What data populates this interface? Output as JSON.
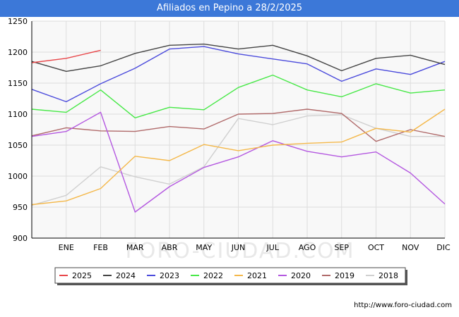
{
  "header": {
    "title": "Afiliados en Pepino a 28/2/2025"
  },
  "watermark": "FORO-CIUDAD.COM",
  "source": "http://www.foro-ciudad.com",
  "chart_data": {
    "type": "line",
    "title": "Afiliados en Pepino a 28/2/2025",
    "xlabel": "",
    "ylabel": "",
    "ylim": [
      900,
      1250
    ],
    "yticks": [
      900,
      950,
      1000,
      1050,
      1100,
      1150,
      1200,
      1250
    ],
    "categories": [
      "",
      "ENE",
      "FEB",
      "MAR",
      "ABR",
      "MAY",
      "JUN",
      "JUL",
      "AGO",
      "SEP",
      "OCT",
      "NOV",
      "DIC"
    ],
    "grid": true,
    "legend_position": "bottom",
    "series": [
      {
        "name": "2025",
        "color": "#e8474a",
        "values": [
          1183,
          1190,
          1203,
          null,
          null,
          null,
          null,
          null,
          null,
          null,
          null,
          null,
          null
        ]
      },
      {
        "name": "2024",
        "color": "#444444",
        "values": [
          1185,
          1169,
          1178,
          1198,
          1211,
          1213,
          1205,
          1211,
          1194,
          1170,
          1190,
          1195,
          1180
        ]
      },
      {
        "name": "2023",
        "color": "#4b4bdc",
        "values": [
          1140,
          1120,
          1149,
          1174,
          1205,
          1209,
          1197,
          1189,
          1181,
          1153,
          1173,
          1164,
          1185
        ]
      },
      {
        "name": "2022",
        "color": "#48e848",
        "values": [
          1108,
          1103,
          1139,
          1094,
          1111,
          1107,
          1143,
          1163,
          1139,
          1128,
          1149,
          1134,
          1139
        ]
      },
      {
        "name": "2021",
        "color": "#f4b84a",
        "values": [
          954,
          960,
          980,
          1032,
          1025,
          1051,
          1041,
          1050,
          1053,
          1055,
          1077,
          1071,
          1108
        ]
      },
      {
        "name": "2020",
        "color": "#b458e0",
        "values": [
          1064,
          1072,
          1103,
          942,
          983,
          1014,
          1031,
          1057,
          1040,
          1031,
          1039,
          1005,
          955
        ]
      },
      {
        "name": "2019",
        "color": "#b06a6a",
        "values": [
          1065,
          1078,
          1073,
          1072,
          1080,
          1076,
          1100,
          1101,
          1108,
          1101,
          1056,
          1075,
          1064
        ]
      },
      {
        "name": "2018",
        "color": "#d0d0d0",
        "values": [
          953,
          969,
          1015,
          999,
          987,
          1015,
          1093,
          1083,
          1097,
          1099,
          1077,
          1064,
          1064
        ]
      }
    ]
  }
}
